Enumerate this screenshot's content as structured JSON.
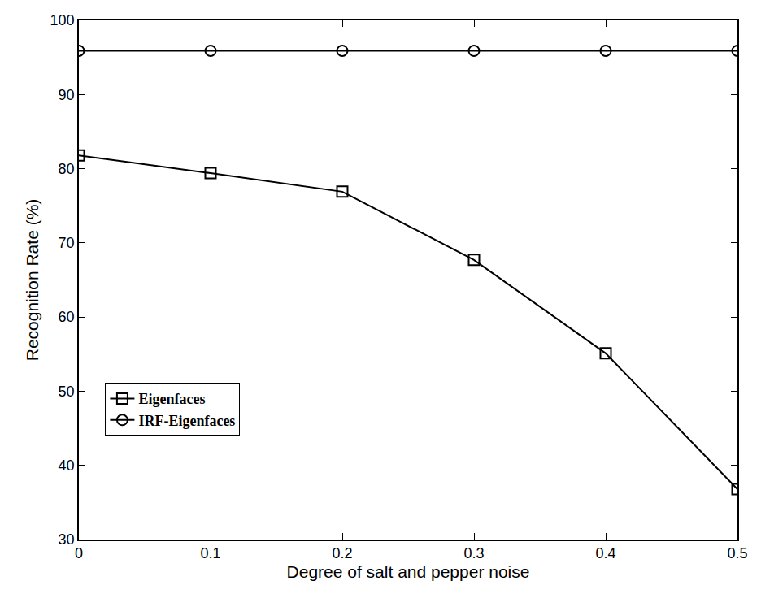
{
  "chart_data": {
    "type": "line",
    "x_label": "Degree of salt and pepper noise",
    "y_label": "Recognition Rate (%)",
    "x": [
      0,
      0.1,
      0.2,
      0.3,
      0.4,
      0.5
    ],
    "series": [
      {
        "name": "Eigenfaces",
        "color": "#000000",
        "marker": "square-open",
        "line_style": "solid",
        "values": [
          81.8,
          79.4,
          76.9,
          67.7,
          55.1,
          36.8
        ]
      },
      {
        "name": "IRF-Eigenfaces",
        "color": "#000000",
        "marker": "circle-open",
        "line_style": "solid",
        "values": [
          95.9,
          95.9,
          95.9,
          95.9,
          95.9,
          95.9
        ]
      }
    ],
    "xlim": [
      0,
      0.5
    ],
    "xticks": [
      0,
      0.1,
      0.2,
      0.3,
      0.4,
      0.5
    ],
    "ylim": [
      30,
      100
    ],
    "yticks": [
      30,
      40,
      50,
      60,
      70,
      80,
      90,
      100
    ],
    "grid": false,
    "legend": "lower left"
  }
}
